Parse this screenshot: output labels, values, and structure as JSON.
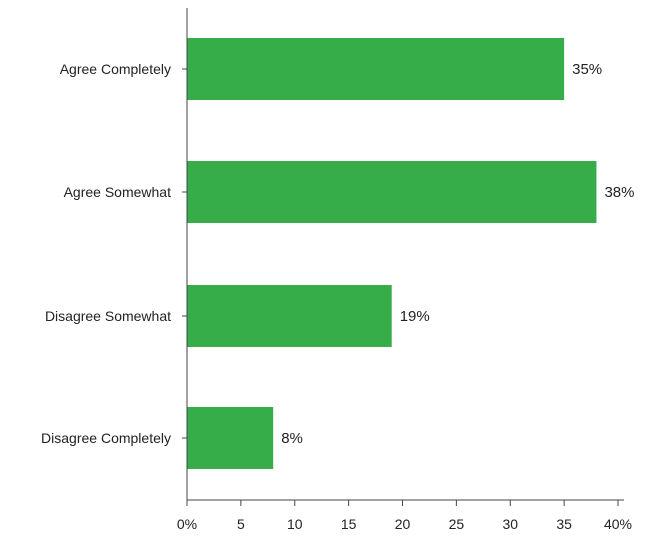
{
  "chart_data": {
    "type": "bar",
    "orientation": "horizontal",
    "categories": [
      "Agree Completely",
      "Agree Somewhat",
      "Disagree Somewhat",
      "Disagree Completely"
    ],
    "values": [
      35,
      38,
      19,
      8
    ],
    "data_labels": [
      "35%",
      "38%",
      "19%",
      "8%"
    ],
    "x_ticks": [
      0,
      5,
      10,
      15,
      20,
      25,
      30,
      35,
      40
    ],
    "x_tick_labels": [
      "0%",
      "5",
      "10",
      "15",
      "20",
      "25",
      "30",
      "35",
      "40%"
    ],
    "xlim": [
      0,
      40
    ],
    "title": "",
    "xlabel": "",
    "ylabel": "",
    "grid": false,
    "legend": "none",
    "bar_color": "#37AD4A"
  }
}
